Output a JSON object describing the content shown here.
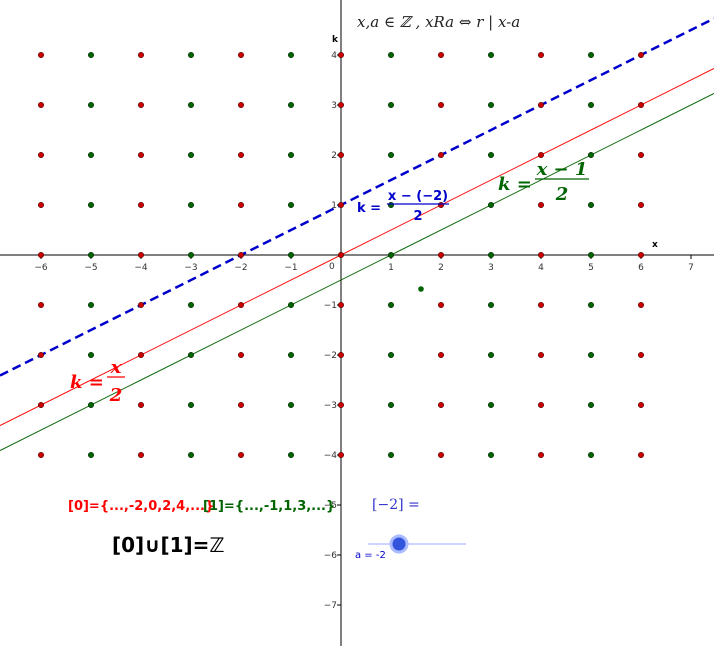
{
  "header": {
    "title": "x,a ∈ ℤ , xRa ⇔ r | x-a"
  },
  "axes": {
    "x_label": "x",
    "y_label": "k",
    "origin_label": "0",
    "xlim": [
      -6.82,
      7.46
    ],
    "ylim": [
      -7.82,
      5.1
    ],
    "xticks": [
      {
        "value": -6,
        "label": "−6"
      },
      {
        "value": -5,
        "label": "−5"
      },
      {
        "value": -4,
        "label": "−4"
      },
      {
        "value": -3,
        "label": "−3"
      },
      {
        "value": -2,
        "label": "−2"
      },
      {
        "value": -1,
        "label": "−1"
      },
      1,
      2,
      3,
      4,
      5,
      6,
      7
    ],
    "yticks": [
      {
        "value": -7,
        "label": "−7"
      },
      {
        "value": -6,
        "label": "−6"
      },
      {
        "value": -5,
        "label": "−5"
      },
      {
        "value": -4,
        "label": "−4"
      },
      {
        "value": -3,
        "label": "−3"
      },
      {
        "value": -2,
        "label": "−2"
      },
      {
        "value": -1,
        "label": "−1"
      },
      1,
      2,
      3,
      4
    ]
  },
  "dots": {
    "x": [
      -6,
      -5,
      -4,
      -3,
      -2,
      -1,
      0,
      1,
      2,
      3,
      4,
      5,
      6
    ],
    "k": [
      -4,
      -3,
      -2,
      -1,
      0,
      1,
      2,
      3,
      4
    ],
    "even_color": "#cc0000",
    "odd_color": "#006400"
  },
  "extra_point": {
    "x": 1.6,
    "k": -0.68,
    "color": "#006400"
  },
  "lines": [
    {
      "a": 0,
      "color": "#ff0000",
      "dashed": false,
      "label": {
        "lhs": "k =",
        "num": "x",
        "den": "2"
      }
    },
    {
      "a": 1,
      "color": "#006400",
      "dashed": false,
      "label": {
        "lhs": "k =",
        "num": "x − 1",
        "den": "2"
      }
    },
    {
      "a": -2,
      "color": "#0000cc",
      "dashed": true,
      "label": {
        "lhs": "k =",
        "num": "x − (−2)",
        "den": "2"
      }
    }
  ],
  "texts": {
    "class0": "[0]={...,-2,0,2,4,...}",
    "class1": "[1]={...,-1,1,3,...}",
    "class_a": "[−2] =",
    "union": "[0]∪[1]=ℤ",
    "slider": "a = -2"
  }
}
